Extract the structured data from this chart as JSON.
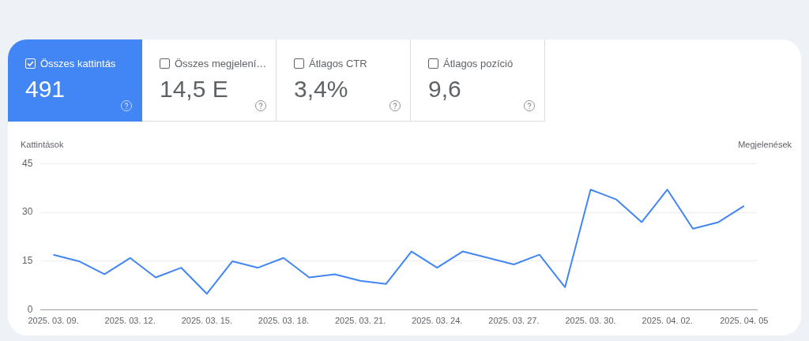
{
  "chart_data": [
    {
      "type": "other",
      "annotations": [
        "Összes kattintás",
        "491",
        "Összes megjelení…",
        "14,5 E",
        "Átlagos CTR",
        "3,4%",
        "Átlagos pozíció",
        "9,6"
      ]
    },
    {
      "type": "line",
      "ylabel": "Kattintások",
      "y2label": "Megjelenések",
      "categories": [
        "2025. 03. 09.",
        null,
        null,
        "2025. 03. 12.",
        null,
        null,
        "2025. 03. 15.",
        null,
        null,
        "2025. 03. 18.",
        null,
        null,
        "2025. 03. 21.",
        null,
        null,
        "2025. 03. 24.",
        null,
        null,
        "2025. 03. 27.",
        null,
        null,
        "2025. 03. 30.",
        null,
        null,
        "2025. 04. 02.",
        null,
        null,
        "2025. 04. 05"
      ],
      "series": [
        {
          "color": "#4285f4",
          "values": [
            17,
            15,
            11,
            16,
            10,
            13,
            5,
            15,
            13,
            16,
            10,
            11,
            9,
            8,
            18,
            13,
            18,
            16,
            14,
            17,
            7,
            37,
            34,
            27,
            37,
            25,
            27,
            32
          ]
        }
      ],
      "ylim": [
        0,
        45
      ],
      "yticks": [
        0,
        15,
        30,
        45
      ],
      "grid": "y",
      "legend": false,
      "marker": "none",
      "line_style": "solid"
    }
  ]
}
